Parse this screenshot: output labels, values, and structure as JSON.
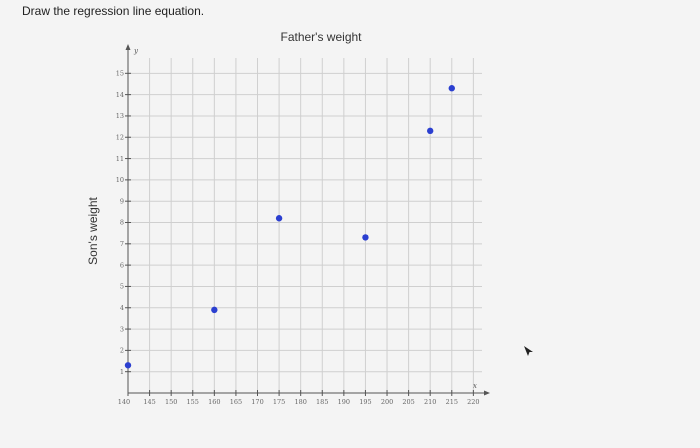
{
  "prompt": "Draw the regression line equation.",
  "chart_data": {
    "type": "scatter",
    "title": "Father's weight",
    "xlabel": "",
    "ylabel": "Son's weight",
    "x_axis_letter": "x",
    "y_axis_letter": "y",
    "xlim": [
      140,
      222
    ],
    "ylim": [
      0,
      16
    ],
    "xticks": [
      140,
      145,
      150,
      155,
      160,
      165,
      170,
      175,
      180,
      185,
      190,
      195,
      200,
      205,
      210,
      215,
      220
    ],
    "yticks": [
      1,
      2,
      3,
      4,
      5,
      6,
      7,
      8,
      9,
      10,
      11,
      12,
      13,
      14,
      15
    ],
    "grid": true,
    "point_color": "#2b3fd0",
    "points": [
      {
        "x": 140,
        "y": 1.3
      },
      {
        "x": 160,
        "y": 3.9
      },
      {
        "x": 175,
        "y": 8.2
      },
      {
        "x": 195,
        "y": 7.3
      },
      {
        "x": 210,
        "y": 12.3
      },
      {
        "x": 215,
        "y": 14.3
      }
    ]
  },
  "cursor_icon": "mouse-pointer-icon"
}
